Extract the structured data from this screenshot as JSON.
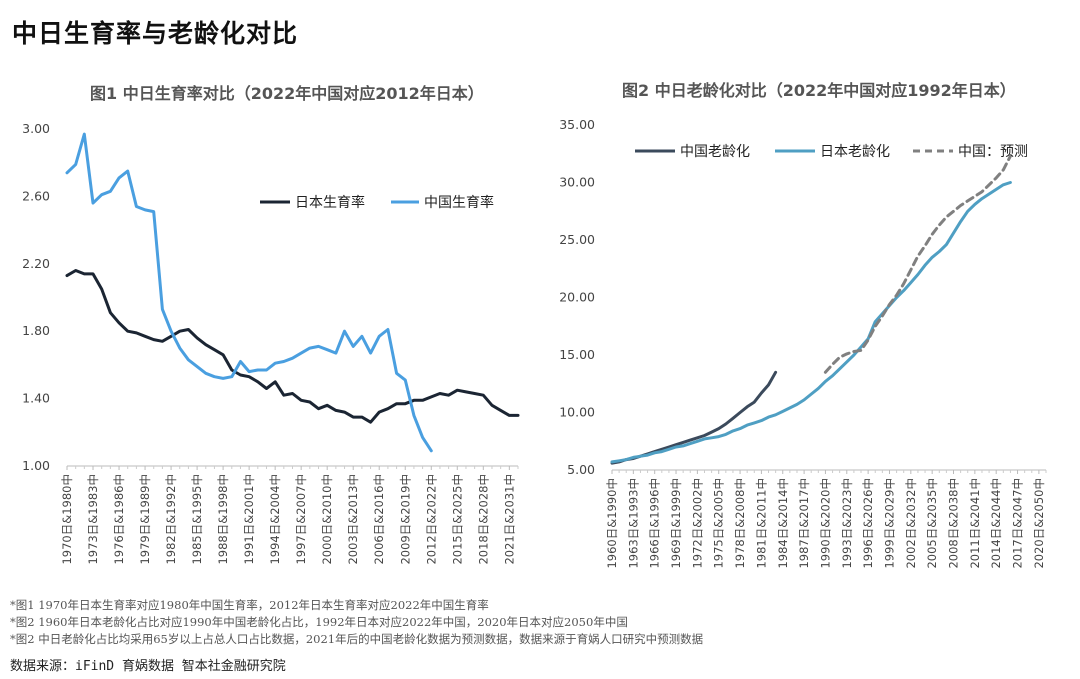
{
  "page": {
    "title": "中日生育率与老龄化对比",
    "notes": [
      "*图1 1970年日本生育率对应1980年中国生育率，2012年日本生育率对应2022年中国生育率",
      "*图2 1960年日本老龄化占比对应1990年中国老龄化占比，1992年日本对应2022年中国，2020年日本对应2050年中国",
      "*图2 中日老龄化占比均采用65岁以上占总人口占比数据，2021年后的中国老龄化数据为预测数据，数据来源于育娲人口研究中预测数据"
    ],
    "source": "数据来源：iFinD 育娲数据 智本社金融研究院"
  },
  "chart_data": [
    {
      "type": "line",
      "title": "图1 中日生育率对比（2022年中国对应2012年日本）",
      "ylim": [
        1.0,
        3.0
      ],
      "yticks": [
        "1.00",
        "1.40",
        "1.80",
        "2.20",
        "2.60",
        "3.00"
      ],
      "grid": false,
      "legend_position": "top-right",
      "x_tick_labels": [
        "1970日&1980中",
        "1973日&1983中",
        "1976日&1986中",
        "1979日&1989中",
        "1982日&1992中",
        "1985日&1995中",
        "1988日&1998中",
        "1991日&2001中",
        "1994日&2004中",
        "1997日&2007中",
        "2000日&2010中",
        "2003日&2013中",
        "2006日&2016中",
        "2009日&2019中",
        "2012日&2022中",
        "2015日&2025中",
        "2018日&2028中",
        "2021日&2031中"
      ],
      "x_start": 1970,
      "x_end": 2022,
      "series": [
        {
          "name": "日本生育率",
          "color": "#1b2533",
          "start": 1970,
          "values": [
            2.13,
            2.16,
            2.14,
            2.14,
            2.05,
            1.91,
            1.85,
            1.8,
            1.79,
            1.77,
            1.75,
            1.74,
            1.77,
            1.8,
            1.81,
            1.76,
            1.72,
            1.69,
            1.66,
            1.57,
            1.54,
            1.53,
            1.5,
            1.46,
            1.5,
            1.42,
            1.43,
            1.39,
            1.38,
            1.34,
            1.36,
            1.33,
            1.32,
            1.29,
            1.29,
            1.26,
            1.32,
            1.34,
            1.37,
            1.37,
            1.39,
            1.39,
            1.41,
            1.43,
            1.42,
            1.45,
            1.44,
            1.43,
            1.42,
            1.36,
            1.33,
            1.3,
            1.3
          ]
        },
        {
          "name": "中国生育率",
          "color": "#4a9fe0",
          "start": 1970,
          "values": [
            2.74,
            2.79,
            2.97,
            2.56,
            2.61,
            2.63,
            2.71,
            2.75,
            2.54,
            2.52,
            2.51,
            1.93,
            1.8,
            1.7,
            1.63,
            1.59,
            1.55,
            1.53,
            1.52,
            1.53,
            1.62,
            1.56,
            1.57,
            1.57,
            1.61,
            1.62,
            1.64,
            1.67,
            1.7,
            1.71,
            1.69,
            1.67,
            1.8,
            1.71,
            1.77,
            1.67,
            1.77,
            1.81,
            1.55,
            1.51,
            1.3,
            1.17,
            1.09
          ]
        }
      ]
    },
    {
      "type": "line",
      "title": "图2 中日老龄化对比（2022年中国对应1992年日本）",
      "ylim": [
        5.0,
        35.0
      ],
      "yticks": [
        "5.00",
        "10.00",
        "15.00",
        "20.00",
        "25.00",
        "30.00",
        "35.00"
      ],
      "grid": false,
      "legend_position": "top",
      "x_tick_labels": [
        "1960日&1990中",
        "1963日&1993中",
        "1966日&1996中",
        "1969日&1999中",
        "1972日&2002中",
        "1975日&2005中",
        "1978日&2008中",
        "1981日&2011中",
        "1984日&2014中",
        "1987日&2017中",
        "1990日&2020中",
        "1993日&2023中",
        "1996日&2026中",
        "1999日&2029中",
        "2002日&2032中",
        "2005日&2035中",
        "2008日&2038中",
        "2011日&2041中",
        "2014日&2044中",
        "2017日&2047中",
        "2020日&2050中"
      ],
      "x_start": 1960,
      "x_end": 2021,
      "series": [
        {
          "name": "中国老龄化",
          "color": "#3b4a5c",
          "dash": false,
          "start": 1960,
          "values": [
            5.6,
            5.7,
            5.9,
            6.0,
            6.2,
            6.4,
            6.6,
            6.8,
            7.0,
            7.2,
            7.4,
            7.6,
            7.8,
            8.0,
            8.3,
            8.6,
            9.0,
            9.5,
            10.0,
            10.5,
            10.9,
            11.7,
            12.4,
            13.5
          ]
        },
        {
          "name": "日本老龄化",
          "color": "#4f9fc3",
          "dash": false,
          "start": 1960,
          "values": [
            5.7,
            5.8,
            5.9,
            6.1,
            6.2,
            6.3,
            6.5,
            6.6,
            6.8,
            7.0,
            7.1,
            7.3,
            7.5,
            7.7,
            7.8,
            7.9,
            8.1,
            8.4,
            8.6,
            8.9,
            9.1,
            9.3,
            9.6,
            9.8,
            10.1,
            10.4,
            10.7,
            11.1,
            11.6,
            12.1,
            12.7,
            13.2,
            13.8,
            14.4,
            15.0,
            15.7,
            16.4,
            17.9,
            18.6,
            19.3,
            20.0,
            20.6,
            21.3,
            22.0,
            22.8,
            23.5,
            24.0,
            24.6,
            25.6,
            26.6,
            27.5,
            28.1,
            28.6,
            29.0,
            29.4,
            29.8,
            30.0
          ]
        },
        {
          "name": "中国：预测",
          "color": "#808080",
          "dash": true,
          "start": 1990,
          "values": [
            13.5,
            14.2,
            14.8,
            15.1,
            15.3,
            15.4,
            16.3,
            17.5,
            18.4,
            19.4,
            20.2,
            21.2,
            22.4,
            23.6,
            24.5,
            25.5,
            26.3,
            27.0,
            27.5,
            28.0,
            28.4,
            28.8,
            29.2,
            29.8,
            30.4,
            31.1,
            32.3
          ]
        }
      ]
    }
  ]
}
